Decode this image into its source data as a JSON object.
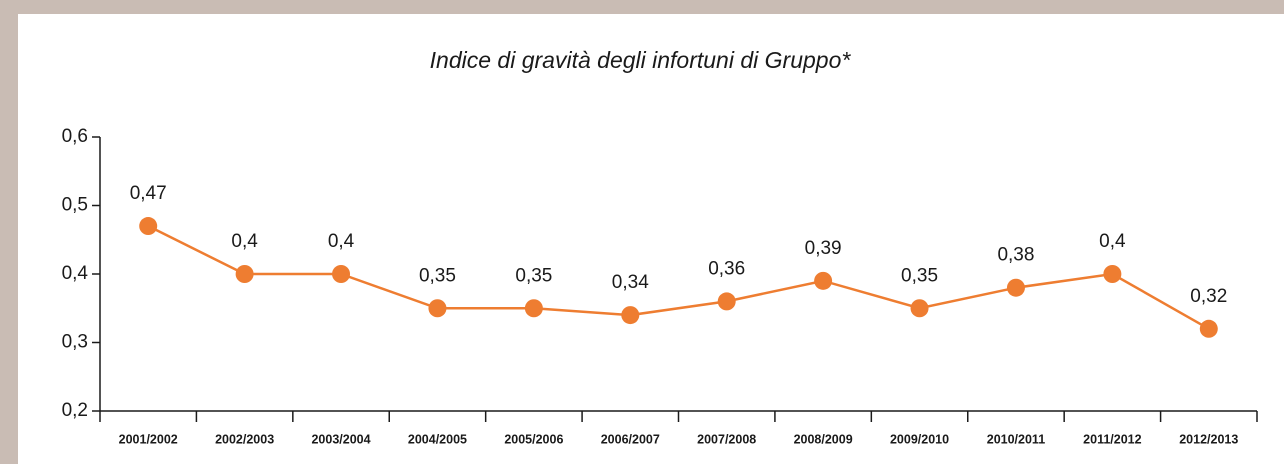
{
  "chart_data": {
    "type": "line",
    "title": "Indice di gravità degli infortuni di Gruppo*",
    "categories": [
      "2001/2002",
      "2002/2003",
      "2003/2004",
      "2004/2005",
      "2005/2006",
      "2006/2007",
      "2007/2008",
      "2008/2009",
      "2009/2010",
      "2010/2011",
      "2011/2012",
      "2012/2013"
    ],
    "values": [
      0.47,
      0.4,
      0.4,
      0.35,
      0.35,
      0.34,
      0.36,
      0.39,
      0.35,
      0.38,
      0.4,
      0.32
    ],
    "value_labels": [
      "0,47",
      "0,4",
      "0,4",
      "0,35",
      "0,35",
      "0,34",
      "0,36",
      "0,39",
      "0,35",
      "0,38",
      "0,4",
      "0,32"
    ],
    "color": "#ee7d31",
    "ylim": [
      0.2,
      0.6
    ],
    "yticks": [
      {
        "value": 0.2,
        "label": "0,2"
      },
      {
        "value": 0.3,
        "label": "0,3"
      },
      {
        "value": 0.4,
        "label": "0,4"
      },
      {
        "value": 0.5,
        "label": "0,5"
      },
      {
        "value": 0.6,
        "label": "0,6"
      }
    ],
    "grid": false
  }
}
